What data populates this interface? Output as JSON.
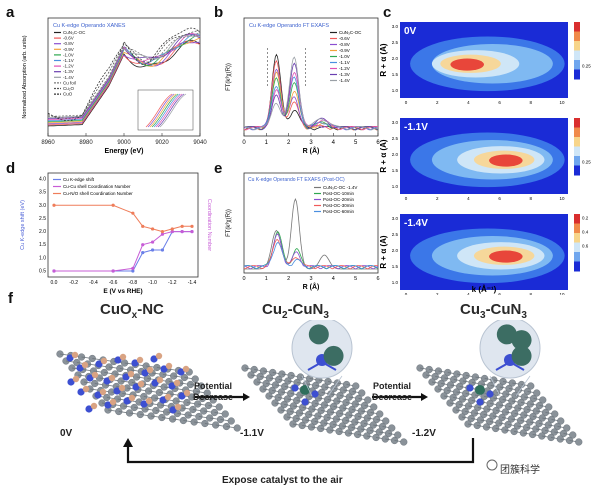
{
  "panels": {
    "a": "a",
    "b": "b",
    "c": "c",
    "d": "d",
    "e": "e",
    "f": "f"
  },
  "chart_data": [
    {
      "id": "a",
      "type": "line",
      "title": "Cu K-edge Operando XANES",
      "xlabel": "Energy (eV)",
      "ylabel": "Normalized Absorption (arb. units)",
      "xlim": [
        8960,
        9040
      ],
      "xticks": [
        "8960",
        "8980",
        "9000",
        "9020",
        "9040"
      ],
      "legend": [
        "CuN₃C-OC",
        "-0.6V",
        "-0.8V",
        "-0.9V",
        "-1.0V",
        "-1.1V",
        "-1.2V",
        "-1.3V",
        "-1.4V",
        "Cu foil",
        "Cu₂O",
        "CuO"
      ],
      "colors": [
        "#222222",
        "#f05a5a",
        "#8a4fd1",
        "#f2a23a",
        "#2ea84f",
        "#4a8fe0",
        "#e04fb5",
        "#6a3fb0",
        "#9aa0a6",
        "#7a7a7a",
        "#555555",
        "#333333"
      ]
    },
    {
      "id": "b",
      "type": "line",
      "title": "Cu K-edge Operando FT EXAFS",
      "xlabel": "R (Å)",
      "ylabel": "FT(k³χ(R))",
      "xlim": [
        0,
        6
      ],
      "xticks": [
        "0",
        "1",
        "2",
        "3",
        "4",
        "5",
        "6"
      ],
      "legend": [
        "CuN₃C-OC",
        "-0.6V",
        "-0.8V",
        "-0.9V",
        "-1.0V",
        "-1.1V",
        "-1.2V",
        "-1.3V",
        "-1.4V"
      ],
      "colors": [
        "#222222",
        "#f05a5a",
        "#8a4fd1",
        "#f2a23a",
        "#2ea84f",
        "#4a8fe0",
        "#e04fb5",
        "#6a3fb0",
        "#9aa0a6"
      ]
    },
    {
      "id": "c",
      "type": "heatmap",
      "ylabel": "R + α (Å)",
      "xlabel": "k (Å⁻¹)",
      "maps": [
        {
          "label": "0V",
          "colorbar": [
            "0.25"
          ]
        },
        {
          "label": "-1.1V",
          "colorbar": [
            "0.25"
          ]
        },
        {
          "label": "-1.4V",
          "colorbar": [
            "0.6",
            "0.4",
            "0.2"
          ]
        }
      ],
      "xticks": [
        "0",
        "2",
        "4",
        "6",
        "8",
        "10"
      ],
      "yticks": [
        "1.0",
        "1.5",
        "2.0",
        "2.5",
        "3.0"
      ]
    },
    {
      "id": "d",
      "type": "line",
      "xlabel": "E (V vs RHE)",
      "ylabel": "Cu K-edge shift (eV)",
      "ylabel2": "Coordination Number",
      "legend": [
        "Cu K-edge shift",
        "Cu-Cu shell Coordination Number",
        "Cu-N/O shell Coordination Number"
      ],
      "xticks": [
        "0.0",
        "-0.2",
        "-0.4",
        "-0.6",
        "-0.8",
        "-1.0",
        "-1.2",
        "-1.4"
      ],
      "yticks": [
        "0.5",
        "1.0",
        "1.5",
        "2.0",
        "2.5",
        "3.0",
        "3.5",
        "4.0"
      ],
      "x": [
        0.0,
        -0.6,
        -0.8,
        -0.9,
        -1.0,
        -1.1,
        -1.2,
        -1.3,
        -1.4
      ],
      "series": [
        {
          "name": "Cu K-edge shift",
          "values": [
            0.5,
            0.5,
            0.5,
            1.2,
            1.3,
            1.3,
            2.0,
            2.0,
            2.0
          ],
          "color": "#6a7fe8"
        },
        {
          "name": "Cu-Cu shell Coordination Number",
          "values": [
            0.5,
            0.5,
            0.6,
            1.5,
            1.6,
            1.9,
            2.0,
            2.0,
            2.0
          ],
          "color": "#c75cd6"
        },
        {
          "name": "Cu-N/O shell Coordination Number",
          "values": [
            3.0,
            3.0,
            2.7,
            2.2,
            2.1,
            2.0,
            2.1,
            2.2,
            2.2
          ],
          "color": "#ef7d5a"
        }
      ]
    },
    {
      "id": "e",
      "type": "line",
      "title": "Cu K-edge Operando FT EXAFS (Post-OC)",
      "xlabel": "R (Å)",
      "ylabel": "FT(k³χ(R))",
      "xticks": [
        "0",
        "1",
        "2",
        "3",
        "4",
        "5",
        "6"
      ],
      "legend": [
        "CuN₃C-OC -1.4V",
        "Post-OC-10min",
        "Post-OC-20min",
        "Post-OC-30min",
        "Post-OC-60min"
      ],
      "colors": [
        "#777777",
        "#2ea84f",
        "#8a4fd1",
        "#f05a5a",
        "#4a8fe0"
      ]
    }
  ],
  "scheme": {
    "caption_1": "CuO",
    "caption_1_sub": "x",
    "caption_1_tail": "-NC",
    "caption_2": "Cu",
    "caption_2_sub": "2",
    "caption_2_tail": "-CuN",
    "caption_2_sub2": "3",
    "caption_3": "Cu",
    "caption_3_sub": "3",
    "caption_3_tail": "-CuN",
    "caption_3_sub2": "3",
    "arrow1": "Potential\nDecrease",
    "arrow2": "Potential\nDecrease",
    "v1": "0V",
    "v2": "-1.1V",
    "v3": "-1.2V",
    "return_text": "Expose catalyst to the air",
    "watermark": "团簇科学"
  }
}
